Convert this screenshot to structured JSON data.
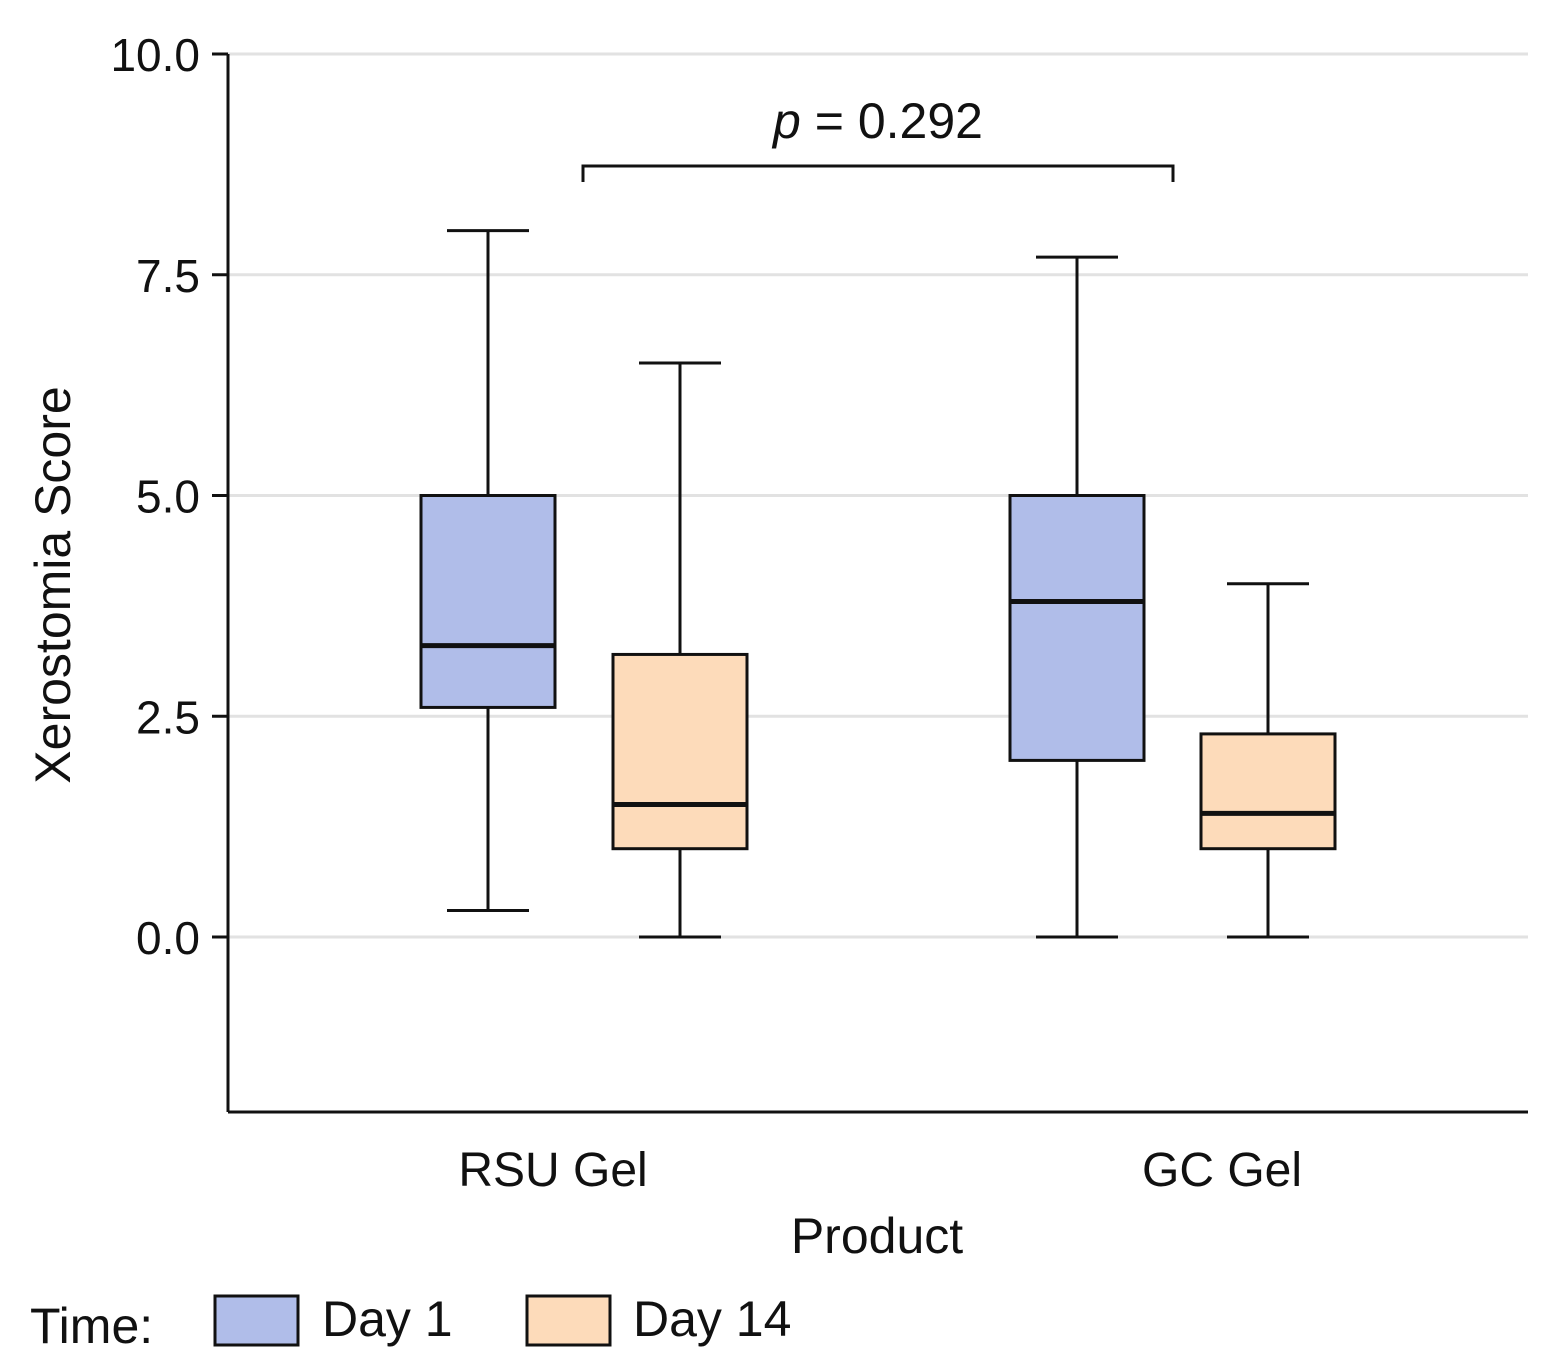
{
  "chart_data": {
    "type": "boxplot",
    "xlabel": "Product",
    "ylabel": "Xerostomia Score",
    "ylim": [
      -2.0,
      10.0
    ],
    "yticks": [
      0.0,
      2.5,
      5.0,
      7.5,
      10.0
    ],
    "ytick_labels": [
      "0.0",
      "2.5",
      "5.0",
      "7.5",
      "10.0"
    ],
    "grid": "horizontal",
    "categories": [
      "RSU Gel",
      "GC Gel"
    ],
    "legend": {
      "title": "Time:",
      "placement": "bottom-left",
      "entries": [
        {
          "label": "Day 1",
          "color": "#b0bde9"
        },
        {
          "label": "Day 14",
          "color": "#fddbba"
        }
      ]
    },
    "series": [
      {
        "name": "Day 1",
        "color": "#b0bde9",
        "boxes": [
          {
            "category": "RSU Gel",
            "min": 0.3,
            "q1": 2.6,
            "median": 3.3,
            "q3": 5.0,
            "max": 8.0
          },
          {
            "category": "GC Gel",
            "min": 0.0,
            "q1": 2.0,
            "median": 3.8,
            "q3": 5.0,
            "max": 7.7
          }
        ]
      },
      {
        "name": "Day 14",
        "color": "#fddbba",
        "boxes": [
          {
            "category": "RSU Gel",
            "min": 0.0,
            "q1": 1.0,
            "median": 1.5,
            "q3": 3.2,
            "max": 6.5
          },
          {
            "category": "GC Gel",
            "min": 0.0,
            "q1": 1.0,
            "median": 1.4,
            "q3": 2.3,
            "max": 4.0
          }
        ]
      }
    ],
    "annotation": {
      "p_symbol": "p",
      "p_text": " = 0.292",
      "between": [
        "RSU Gel",
        "GC Gel"
      ]
    }
  }
}
